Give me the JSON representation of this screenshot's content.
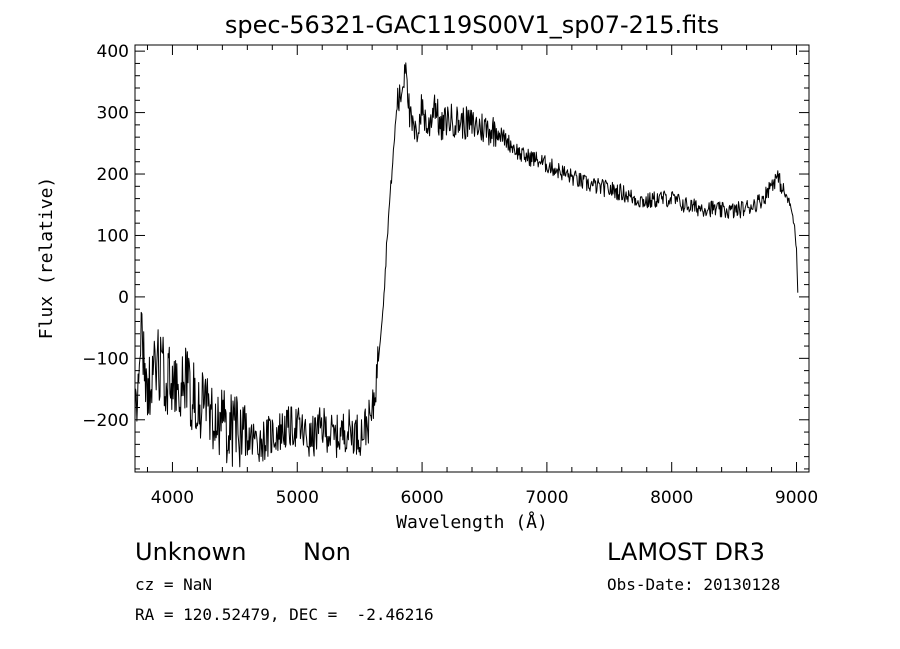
{
  "chart_data": {
    "type": "line",
    "title": "spec-56321-GAC119S00V1_sp07-215.fits",
    "xlabel": "Wavelength (Å)",
    "ylabel": "Flux (relative)",
    "xlim": [
      3700,
      9100
    ],
    "ylim": [
      -285,
      410
    ],
    "x_ticks": [
      4000,
      5000,
      6000,
      7000,
      8000,
      9000
    ],
    "x_tick_labels": [
      "4000",
      "5000",
      "6000",
      "7000",
      "8000",
      "9000"
    ],
    "y_ticks": [
      -200,
      -100,
      0,
      100,
      200,
      300,
      400
    ],
    "y_tick_labels": [
      "−200",
      "−100",
      "0",
      "100",
      "200",
      "300",
      "400"
    ],
    "grid": false,
    "series": [
      {
        "x": [
          3700,
          3750,
          3800,
          3850,
          3900,
          3950,
          4000,
          4100,
          4200,
          4300,
          4400,
          4500,
          4600,
          4700,
          4800,
          4900,
          5000,
          5100,
          5200,
          5300,
          5400,
          5500,
          5600,
          5650,
          5680,
          5700,
          5720,
          5750,
          5780,
          5800,
          5820,
          5850,
          5870,
          5900,
          5950,
          6000,
          6050,
          6100,
          6150,
          6200,
          6300,
          6400,
          6500,
          6600,
          6700,
          6800,
          6900,
          7000,
          7100,
          7200,
          7300,
          7400,
          7500,
          7600,
          7700,
          7800,
          7900,
          8000,
          8100,
          8200,
          8300,
          8400,
          8500,
          8600,
          8700,
          8750,
          8800,
          8850,
          8900,
          8950,
          8980,
          9000,
          9010
        ],
        "y": [
          -180,
          -60,
          -150,
          -120,
          -110,
          -130,
          -150,
          -140,
          -170,
          -190,
          -210,
          -220,
          -230,
          -235,
          -225,
          -215,
          -210,
          -235,
          -210,
          -230,
          -215,
          -225,
          -195,
          -100,
          -30,
          20,
          100,
          180,
          260,
          320,
          320,
          350,
          395,
          290,
          260,
          310,
          270,
          320,
          270,
          290,
          285,
          280,
          275,
          270,
          250,
          230,
          225,
          215,
          205,
          195,
          185,
          180,
          175,
          170,
          160,
          155,
          160,
          160,
          150,
          145,
          145,
          140,
          140,
          145,
          155,
          165,
          185,
          195,
          170,
          150,
          120,
          80,
          10
        ]
      }
    ]
  },
  "info": {
    "object_class": "Unknown",
    "subclass": "Non",
    "survey": "LAMOST DR3",
    "cz": "cz = NaN",
    "obs_date": "Obs-Date: 20130128",
    "coords": "RA = 120.52479, DEC =  -2.46216"
  }
}
